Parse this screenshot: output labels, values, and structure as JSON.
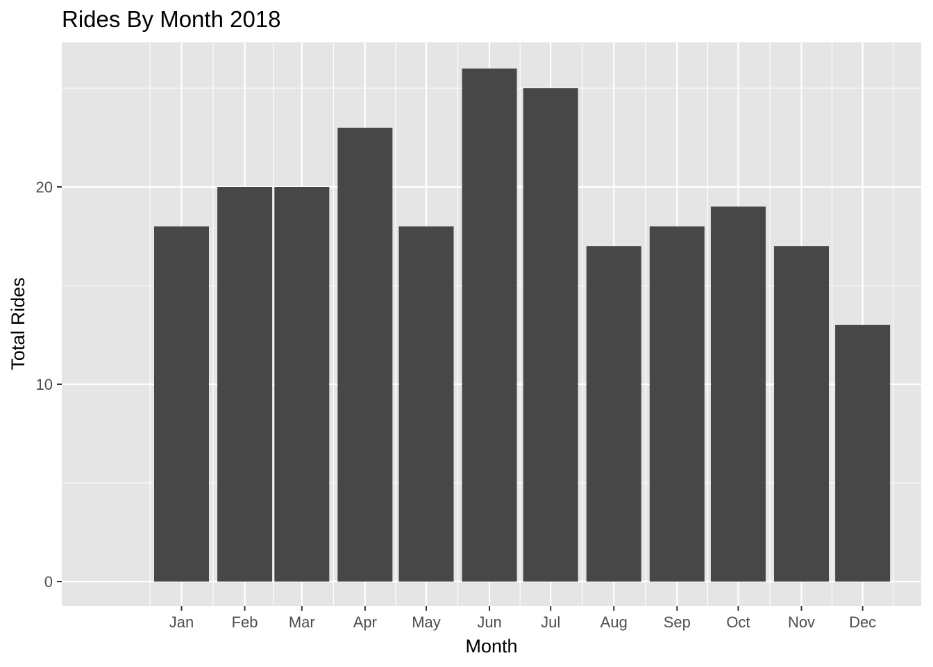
{
  "chart_data": {
    "type": "bar",
    "title": "Rides By Month 2018",
    "xlabel": "Month",
    "ylabel": "Total Rides",
    "categories": [
      "Jan",
      "Feb",
      "Mar",
      "Apr",
      "May",
      "Jun",
      "Jul",
      "Aug",
      "Sep",
      "Oct",
      "Nov",
      "Dec"
    ],
    "x_dates": [
      "2018-01-15",
      "2018-02-15",
      "2018-03-15",
      "2018-04-15",
      "2018-05-15",
      "2018-06-15",
      "2018-07-15",
      "2018-08-15",
      "2018-09-15",
      "2018-10-15",
      "2018-11-15",
      "2018-12-15"
    ],
    "values": [
      18,
      20,
      20,
      23,
      18,
      26,
      25,
      17,
      18,
      19,
      17,
      13
    ],
    "ylim": [
      -1.3,
      27.3
    ],
    "y_ticks": [
      0,
      10,
      20
    ],
    "y_tick_labels": [
      "0",
      "10",
      "20"
    ],
    "grid": true,
    "legend": "none",
    "colors": {
      "bar": "#474747",
      "panel": "#e5e5e5",
      "grid": "#ffffff",
      "tick_text": "#4d4d4d",
      "text": "#000000"
    }
  }
}
